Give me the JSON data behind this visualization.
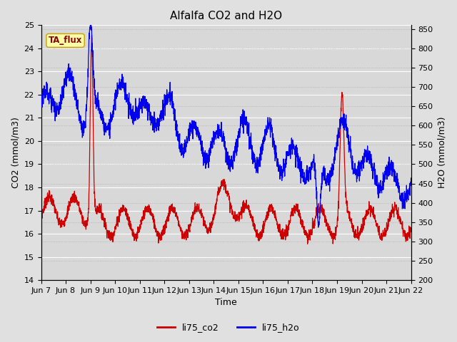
{
  "title": "Alfalfa CO2 and H2O",
  "xlabel": "Time",
  "ylabel_left": "CO2 (mmol/m3)",
  "ylabel_right": "H2O (mmol/m3)",
  "co2_ylim": [
    14.0,
    25.0
  ],
  "h2o_ylim": [
    200,
    860
  ],
  "co2_yticks": [
    14.0,
    15.0,
    16.0,
    17.0,
    18.0,
    19.0,
    20.0,
    21.0,
    22.0,
    23.0,
    24.0,
    25.0
  ],
  "h2o_yticks": [
    200,
    250,
    300,
    350,
    400,
    450,
    500,
    550,
    600,
    650,
    700,
    750,
    800,
    850
  ],
  "xtick_labels": [
    "Jun 7",
    "Jun 8",
    "Jun 9",
    "Jun 10",
    "Jun 11",
    "Jun 12",
    "Jun 13",
    "Jun 14",
    "Jun 15",
    "Jun 16",
    "Jun 17",
    "Jun 18",
    "Jun 19",
    "Jun 20",
    "Jun 21",
    "Jun 22"
  ],
  "annotation_text": "TA_flux",
  "legend_labels": [
    "li75_co2",
    "li75_h2o"
  ],
  "co2_color": "#cc0000",
  "h2o_color": "#0000ee",
  "bg_color": "#e0e0e0",
  "plot_bg_color": "#d8d8d8",
  "title_fontsize": 11,
  "label_fontsize": 9,
  "tick_fontsize": 8
}
